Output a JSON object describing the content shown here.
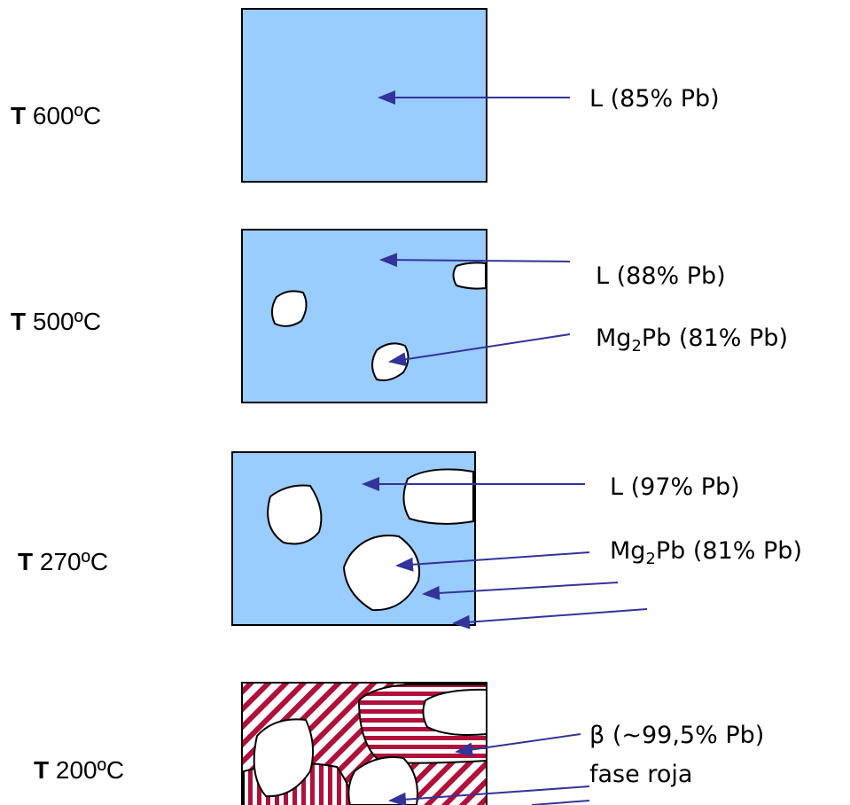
{
  "stages": [
    {
      "prefix": "T",
      "temperature": "600ºC",
      "phases": [
        {
          "label": "L (85% Pb)"
        }
      ]
    },
    {
      "prefix": "T",
      "temperature": "500ºC",
      "phases": [
        {
          "label": "L (88% Pb)"
        },
        {
          "main": "Mg",
          "sub": "2",
          "rest": "Pb (81% Pb)"
        }
      ]
    },
    {
      "prefix": "T",
      "temperature": "270ºC",
      "phases": [
        {
          "label": "L (97% Pb)"
        },
        {
          "main": "Mg",
          "sub": "2",
          "rest": "Pb (81% Pb)"
        }
      ]
    },
    {
      "prefix": "T",
      "temperature": "200ºC",
      "phases": [
        {
          "label": "β (~99,5% Pb)"
        },
        {
          "label": "fase roja"
        }
      ]
    }
  ]
}
